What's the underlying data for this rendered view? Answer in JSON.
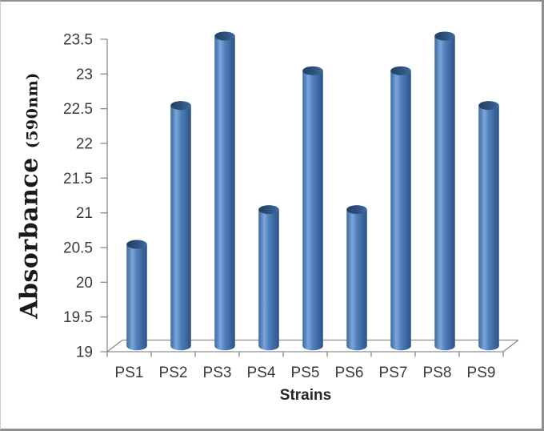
{
  "chart_data": {
    "type": "bar",
    "subtype": "3d-cylinder",
    "title": "",
    "xlabel": "Strains",
    "ylabel": "Absorbance",
    "ylabel_sub": "(590nm)",
    "categories": [
      "PS1",
      "PS2",
      "PS3",
      "PS4",
      "PS5",
      "PS6",
      "PS7",
      "PS8",
      "PS9"
    ],
    "values": [
      20.5,
      22.5,
      23.5,
      21,
      23,
      21,
      23,
      23.5,
      22.5
    ],
    "ylim": [
      19,
      23.5
    ],
    "ytick_step": 0.5,
    "yticks": [
      23.5,
      23,
      22.5,
      22,
      21.5,
      21,
      20.5,
      20,
      19.5,
      19
    ],
    "grid": false,
    "legend": "none",
    "colors": {
      "bar_base": "#4f81bd",
      "bar_gradient": [
        [
          "0%",
          "#41699f"
        ],
        [
          "8%",
          "#4c79b1"
        ],
        [
          "28%",
          "#7ca6d8"
        ],
        [
          "50%",
          "#4f81bd"
        ],
        [
          "80%",
          "#3a659c"
        ],
        [
          "100%",
          "#2c5182"
        ]
      ],
      "cap_gradient": [
        [
          "0%",
          "#223f60"
        ],
        [
          "55%",
          "#2d527e"
        ],
        [
          "100%",
          "#3e6ca3"
        ]
      ],
      "axis": "#8c8c8c",
      "tick_text": "#3a3a3a"
    }
  }
}
